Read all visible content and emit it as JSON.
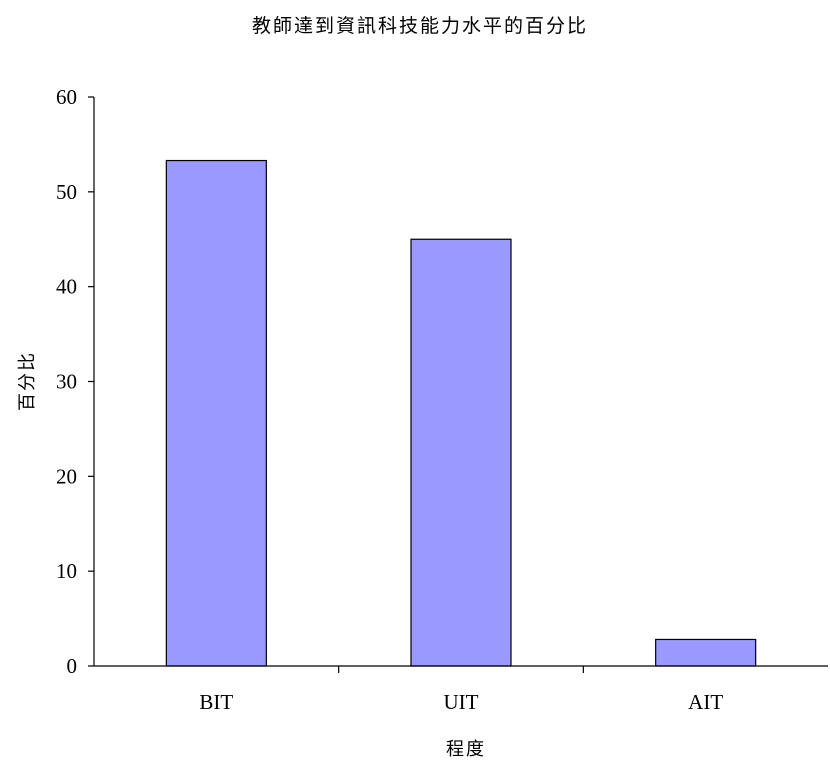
{
  "chart_data": {
    "type": "bar",
    "title": "教師達到資訊科技能力水平的百分比",
    "xlabel": "程度",
    "ylabel": "百分比",
    "categories": [
      "BIT",
      "UIT",
      "AIT"
    ],
    "values": [
      53.3,
      45.0,
      2.8
    ],
    "ylim": [
      0,
      60
    ],
    "yticks": [
      0,
      10,
      20,
      30,
      40,
      50,
      60
    ],
    "grid": false,
    "legend": "none",
    "bar_color": "#9999ff",
    "bar_edge_color": "#000000"
  }
}
